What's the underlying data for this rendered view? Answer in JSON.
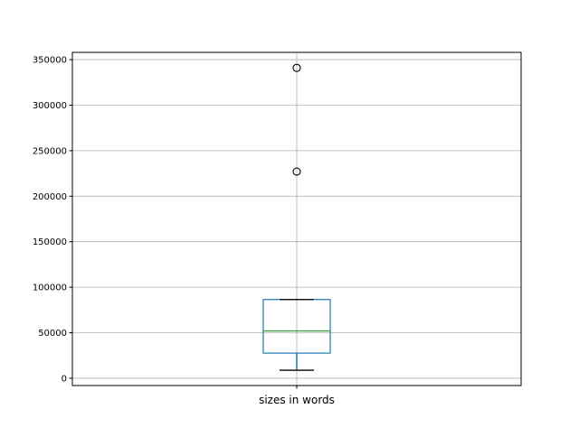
{
  "chart_data": {
    "type": "boxplot",
    "categories": [
      "sizes in words"
    ],
    "boxes": [
      {
        "label": "sizes in words",
        "whisker_low": 8800,
        "q1": 27600,
        "median": 52000,
        "q3": 86500,
        "whisker_high": 86500,
        "outliers": [
          341000,
          227000
        ]
      }
    ],
    "ylim": [
      -8000,
      358000
    ],
    "yticks": [
      0,
      50000,
      100000,
      150000,
      200000,
      250000,
      300000,
      350000
    ],
    "ytick_labels": [
      "0",
      "50000",
      "100000",
      "150000",
      "200000",
      "250000",
      "300000",
      "350000"
    ],
    "grid": true,
    "colors": {
      "box": "#1f77b4",
      "median": "#2ca02c",
      "whisker_cap": "#000000",
      "grid": "#b0b0b0"
    }
  }
}
